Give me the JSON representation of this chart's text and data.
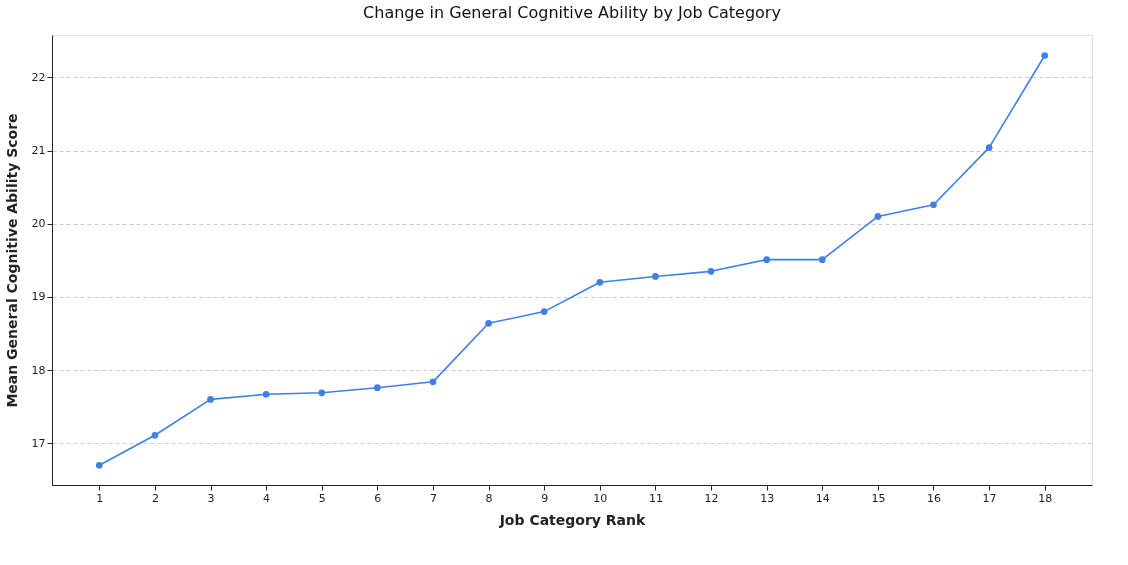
{
  "chart_data": {
    "type": "line",
    "title": "Change in General Cognitive Ability by Job Category",
    "xlabel": "Job Category Rank",
    "ylabel": "Mean General Cognitive Ability Score",
    "x": [
      1,
      2,
      3,
      4,
      5,
      6,
      7,
      8,
      9,
      10,
      11,
      12,
      13,
      14,
      15,
      16,
      17,
      18
    ],
    "series": [
      {
        "color": "#3f7fe8",
        "values": [
          16.7,
          17.11,
          17.6,
          17.67,
          17.69,
          17.76,
          17.84,
          18.64,
          18.8,
          19.2,
          19.28,
          19.35,
          19.51,
          19.51,
          20.1,
          20.26,
          21.04,
          22.3
        ]
      }
    ],
    "xlim": [
      0.15,
      18.85
    ],
    "xticks": [
      1,
      2,
      3,
      4,
      5,
      6,
      7,
      8,
      9,
      10,
      11,
      12,
      13,
      14,
      15,
      16,
      17,
      18
    ],
    "ylim": [
      16.43,
      22.58
    ],
    "yticks": [
      17,
      18,
      19,
      20,
      21,
      22
    ],
    "grid": "y",
    "marker": "circle",
    "line_style": "solid",
    "legend": false
  }
}
